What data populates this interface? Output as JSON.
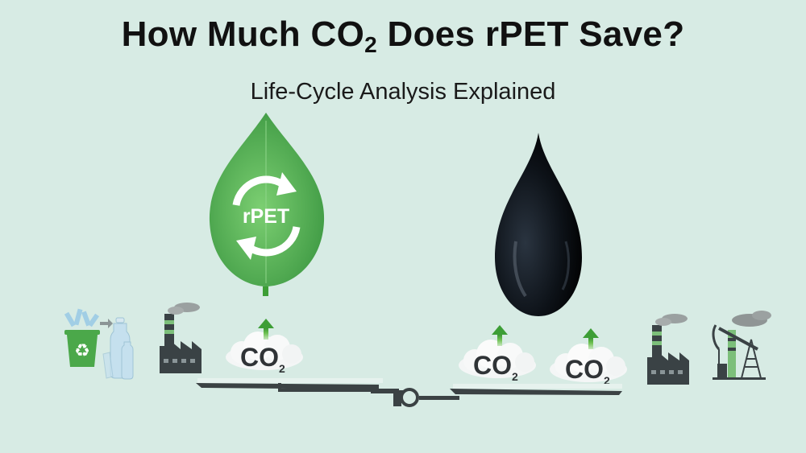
{
  "title": {
    "main_before": "How Much CO",
    "subscript": "2",
    "main_after": " Does rPET Save?"
  },
  "subtitle": "Life-Cycle Analysis Explained",
  "leaf_label": "rPET",
  "co2_labels": [
    {
      "text": "CO",
      "sub": "2"
    },
    {
      "text": "CO",
      "sub": "2"
    },
    {
      "text": "CO",
      "sub": "2"
    }
  ],
  "colors": {
    "background": "#d7ebe4",
    "leaf_green": "#5db85a",
    "oil_black": "#0d1218",
    "arrow_green": "#4caf3c",
    "icon_dark": "#3a4245"
  },
  "icons": [
    "recycling-bin-icon",
    "plastic-bottles-icon",
    "factory-icon",
    "leaf-icon",
    "recycle-arrows-icon",
    "oil-drop-icon",
    "co2-cloud-icon",
    "up-arrow-icon",
    "oil-pumpjack-icon",
    "balance-scale-icon"
  ]
}
